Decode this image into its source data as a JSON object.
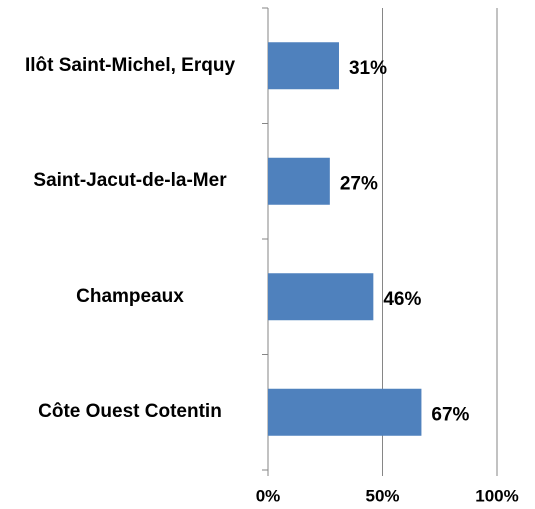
{
  "chart_data": {
    "type": "bar",
    "orientation": "horizontal",
    "categories": [
      "Ilôt Saint-Michel, Erquy",
      "Saint-Jacut-de-la-Mer",
      "Champeaux",
      "Côte Ouest Cotentin"
    ],
    "values": [
      31,
      27,
      46,
      67
    ],
    "value_labels": [
      "31%",
      "27%",
      "46%",
      "67%"
    ],
    "color": "#4f81bd",
    "xlim": [
      0,
      100
    ],
    "xticks": [
      {
        "value": 0,
        "label": "0%"
      },
      {
        "value": 50,
        "label": "50%"
      },
      {
        "value": 100,
        "label": "100%"
      }
    ],
    "grid": true
  }
}
